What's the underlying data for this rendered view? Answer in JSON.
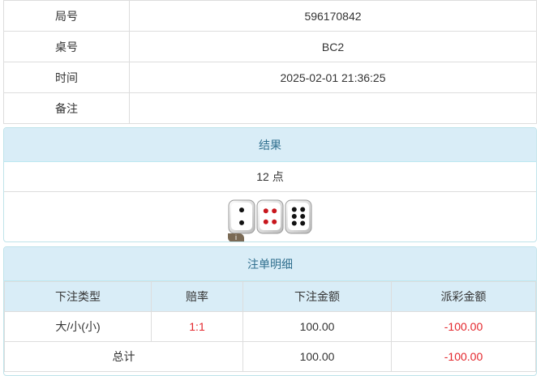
{
  "info": [
    {
      "label": "局号",
      "value": "596170842"
    },
    {
      "label": "桌号",
      "value": "BC2"
    },
    {
      "label": "时间",
      "value": "2025-02-01 21:36:25"
    },
    {
      "label": "备注",
      "value": ""
    }
  ],
  "result": {
    "title": "结果",
    "points": "12 点",
    "dice": [
      2,
      4,
      6
    ],
    "info_badge": "i"
  },
  "bets": {
    "title": "注单明细",
    "headers": [
      "下注类型",
      "赔率",
      "下注金额",
      "派彩金额"
    ],
    "rows": [
      {
        "type": "大/小(小)",
        "odds": "1:1",
        "amount": "100.00",
        "payout": "-100.00"
      }
    ],
    "total": {
      "label": "总计",
      "amount": "100.00",
      "payout": "-100.00"
    }
  },
  "colors": {
    "header_bg": "#d9edf7",
    "header_text": "#31708f",
    "negative": "#e4262c"
  }
}
